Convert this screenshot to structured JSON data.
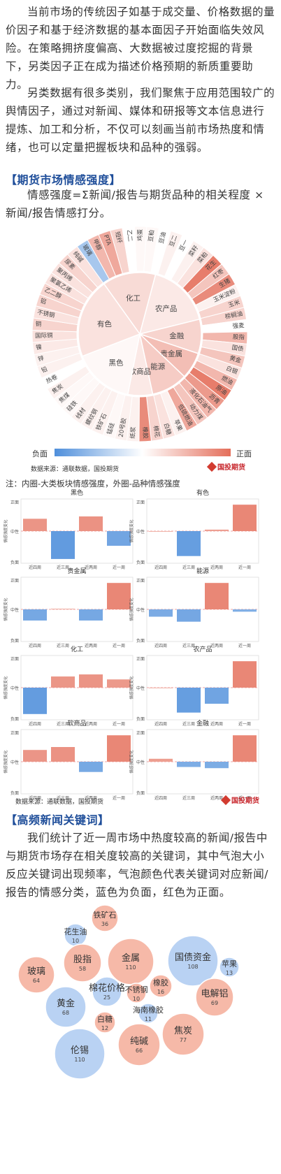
{
  "intro": {
    "p1": "当前市场的传统因子如基于成交量、价格数据的量价因子和基于经济数据的基本面因子开始面临失效风险。在策略拥挤度偏高、大数据被过度挖掘的背景下，另类因子正在成为描述价格预期的新质重要助力。",
    "p2": "另类数据有很多类别，我们聚焦于应用范围较广的舆情因子，通过对新闻、媒体和研报等文本信息进行提炼、加工和分析，不仅可以刻画当前市场热度和情绪，也可以定量把握板块和品种的强弱。"
  },
  "sentiment_section": {
    "title": "【期货市场情感强度】",
    "formula": "情感强度=Σ新闻/报告与期货品种的相关程度 × 新闻/报告情感打分。",
    "legend_negative": "负面",
    "legend_positive": "正面",
    "source": "数据来源：通联数据，国投期货",
    "note": "注：内圈-大类板块情感强度，外圈-品种情感强度",
    "logo": "国投期货",
    "colors": {
      "negative": "#4f8fdb",
      "positive": "#e46e5a",
      "neutral": "#ffffff"
    }
  },
  "sunburst": {
    "inner": [
      {
        "name": "化工",
        "value": 0.25
      },
      {
        "name": "农产品",
        "value": 0.15
      },
      {
        "name": "金融",
        "value": 0.3
      },
      {
        "name": "贵金属",
        "value": 0.45
      },
      {
        "name": "能源",
        "value": 0.35
      },
      {
        "name": "软商品",
        "value": 0.15
      },
      {
        "name": "黑色",
        "value": 0.05
      },
      {
        "name": "有色",
        "value": 0.2
      }
    ],
    "outer": [
      {
        "name": "鸡蛋",
        "value": 0.05
      },
      {
        "name": "豆粕",
        "value": 0.05
      },
      {
        "name": "豆油",
        "value": 0.0
      },
      {
        "name": "豆二",
        "value": 0.1
      },
      {
        "name": "豆一",
        "value": 0.0
      },
      {
        "name": "菜籽",
        "value": 0.1
      },
      {
        "name": "菜粕",
        "value": 0.2
      },
      {
        "name": "花生",
        "value": 0.9
      },
      {
        "name": "红枣",
        "value": 0.4
      },
      {
        "name": "生猪",
        "value": 0.8
      },
      {
        "name": "玉米淀粉",
        "value": 0.1
      },
      {
        "name": "玉米",
        "value": 0.3
      },
      {
        "name": "棕榈油",
        "value": 0.3
      },
      {
        "name": "强麦",
        "value": 0.0
      },
      {
        "name": "股指",
        "value": 0.5
      },
      {
        "name": "国债",
        "value": 0.2
      },
      {
        "name": "黄金",
        "value": 0.4
      },
      {
        "name": "白银",
        "value": 0.2
      },
      {
        "name": "燃油",
        "value": 0.5
      },
      {
        "name": "原油",
        "value": 0.9
      },
      {
        "name": "沥青",
        "value": 0.7
      },
      {
        "name": "液化石油气",
        "value": 0.5
      },
      {
        "name": "动力煤",
        "value": 0.4
      },
      {
        "name": "低硫燃油",
        "value": 0.6
      },
      {
        "name": "苹果",
        "value": 0.1
      },
      {
        "name": "白糖",
        "value": 0.2
      },
      {
        "name": "棉花",
        "value": 0.3
      },
      {
        "name": "橡胶",
        "value": 0.8
      },
      {
        "name": "纸浆",
        "value": 0.1
      },
      {
        "name": "20号胶",
        "value": 0.1
      },
      {
        "name": "锰硅",
        "value": 0.05
      },
      {
        "name": "铁矿石",
        "value": 0.1
      },
      {
        "name": "螺纹钢",
        "value": 0.1
      },
      {
        "name": "线材",
        "value": 0.1
      },
      {
        "name": "硅铁",
        "value": 0.05
      },
      {
        "name": "焦煤",
        "value": 0.05
      },
      {
        "name": "焦炭",
        "value": 0.1
      },
      {
        "name": "热卷",
        "value": 0.0
      },
      {
        "name": "铅",
        "value": 0.1
      },
      {
        "name": "锌",
        "value": 0.1
      },
      {
        "name": "镍",
        "value": 0.15
      },
      {
        "name": "国际铜",
        "value": 0.2
      },
      {
        "name": "铜",
        "value": 0.3
      },
      {
        "name": "不锈钢",
        "value": 0.2
      },
      {
        "name": "铝",
        "value": 0.3
      },
      {
        "name": "乙二醇",
        "value": 0.3
      },
      {
        "name": "聚氯乙烯",
        "value": 0.2
      },
      {
        "name": "聚丙烯",
        "value": 0.2
      },
      {
        "name": "尿素",
        "value": 0.3
      },
      {
        "name": "纯碱",
        "value": 0.2
      },
      {
        "name": "玻璃",
        "value": -0.5
      },
      {
        "name": "甲醇",
        "value": 0.5
      },
      {
        "name": "PTA",
        "value": 0.6
      },
      {
        "name": "短纤",
        "value": 0.3
      },
      {
        "name": "乙二",
        "value": 0.0
      }
    ]
  },
  "bar_charts": {
    "y_label": "情感强度变化",
    "y_ticks": [
      "正面",
      "中性",
      "负面"
    ],
    "x_labels": [
      "近四周",
      "近三周",
      "近两周",
      "近一周"
    ],
    "charts": [
      {
        "title": "黑色",
        "values": [
          0.42,
          -0.95,
          0.5,
          -0.5
        ]
      },
      {
        "title": "有色",
        "values": [
          0.0,
          -0.85,
          0.05,
          0.9
        ]
      },
      {
        "title": "贵金属",
        "values": [
          -0.38,
          0.02,
          -0.38,
          0.9
        ]
      },
      {
        "title": "能源",
        "values": [
          -0.25,
          -0.42,
          0.9,
          -0.08
        ]
      },
      {
        "title": "化工",
        "values": [
          -0.9,
          0.38,
          0.45,
          0.28
        ]
      },
      {
        "title": "农产品",
        "values": [
          0.0,
          -0.85,
          -0.55,
          0.9
        ]
      },
      {
        "title": "软商品",
        "values": [
          0.4,
          0.5,
          -0.35,
          0.9
        ]
      },
      {
        "title": "金融",
        "values": [
          0.1,
          -0.18,
          -0.22,
          0.9
        ]
      }
    ],
    "source": "数据来源：通联数据，国投期货",
    "logo": "国投期货"
  },
  "keyword_section": {
    "title": "【高频新闻关键词】",
    "paragraph": "我们统计了近一周市场中热度较高的新闻/报告中与期货市场存在相关度较高的关键词，其中气泡大小反应关键词出现频率，气泡颜色代表关键词对应新闻/报告的情感分类，蓝色为负面，红色为正面。"
  },
  "bubbles": [
    {
      "word": "铁矿石",
      "count": "36",
      "sentiment": "positive"
    },
    {
      "word": "花生油",
      "count": "10",
      "sentiment": "negative"
    },
    {
      "word": "股指",
      "count": "58",
      "sentiment": "positive"
    },
    {
      "word": "金属",
      "count": "110",
      "sentiment": "positive"
    },
    {
      "word": "国债资金",
      "count": "108",
      "sentiment": "negative"
    },
    {
      "word": "苹果",
      "count": "13",
      "sentiment": "negative"
    },
    {
      "word": "玻璃",
      "count": "64",
      "sentiment": "positive"
    },
    {
      "word": "棉花价格",
      "count": "25",
      "sentiment": "negative"
    },
    {
      "word": "不锈钢",
      "count": "10",
      "sentiment": "positive"
    },
    {
      "word": "橡胶",
      "count": "16",
      "sentiment": "positive"
    },
    {
      "word": "电解铝",
      "count": "69",
      "sentiment": "positive"
    },
    {
      "word": "黄金",
      "count": "68",
      "sentiment": "negative"
    },
    {
      "word": "白糖",
      "count": "12",
      "sentiment": "positive"
    },
    {
      "word": "海南橡胶",
      "count": "11",
      "sentiment": "negative"
    },
    {
      "word": "焦炭",
      "count": "77",
      "sentiment": "positive"
    },
    {
      "word": "伦锡",
      "count": "110",
      "sentiment": "negative"
    },
    {
      "word": "纯碱",
      "count": "66",
      "sentiment": "positive"
    }
  ]
}
